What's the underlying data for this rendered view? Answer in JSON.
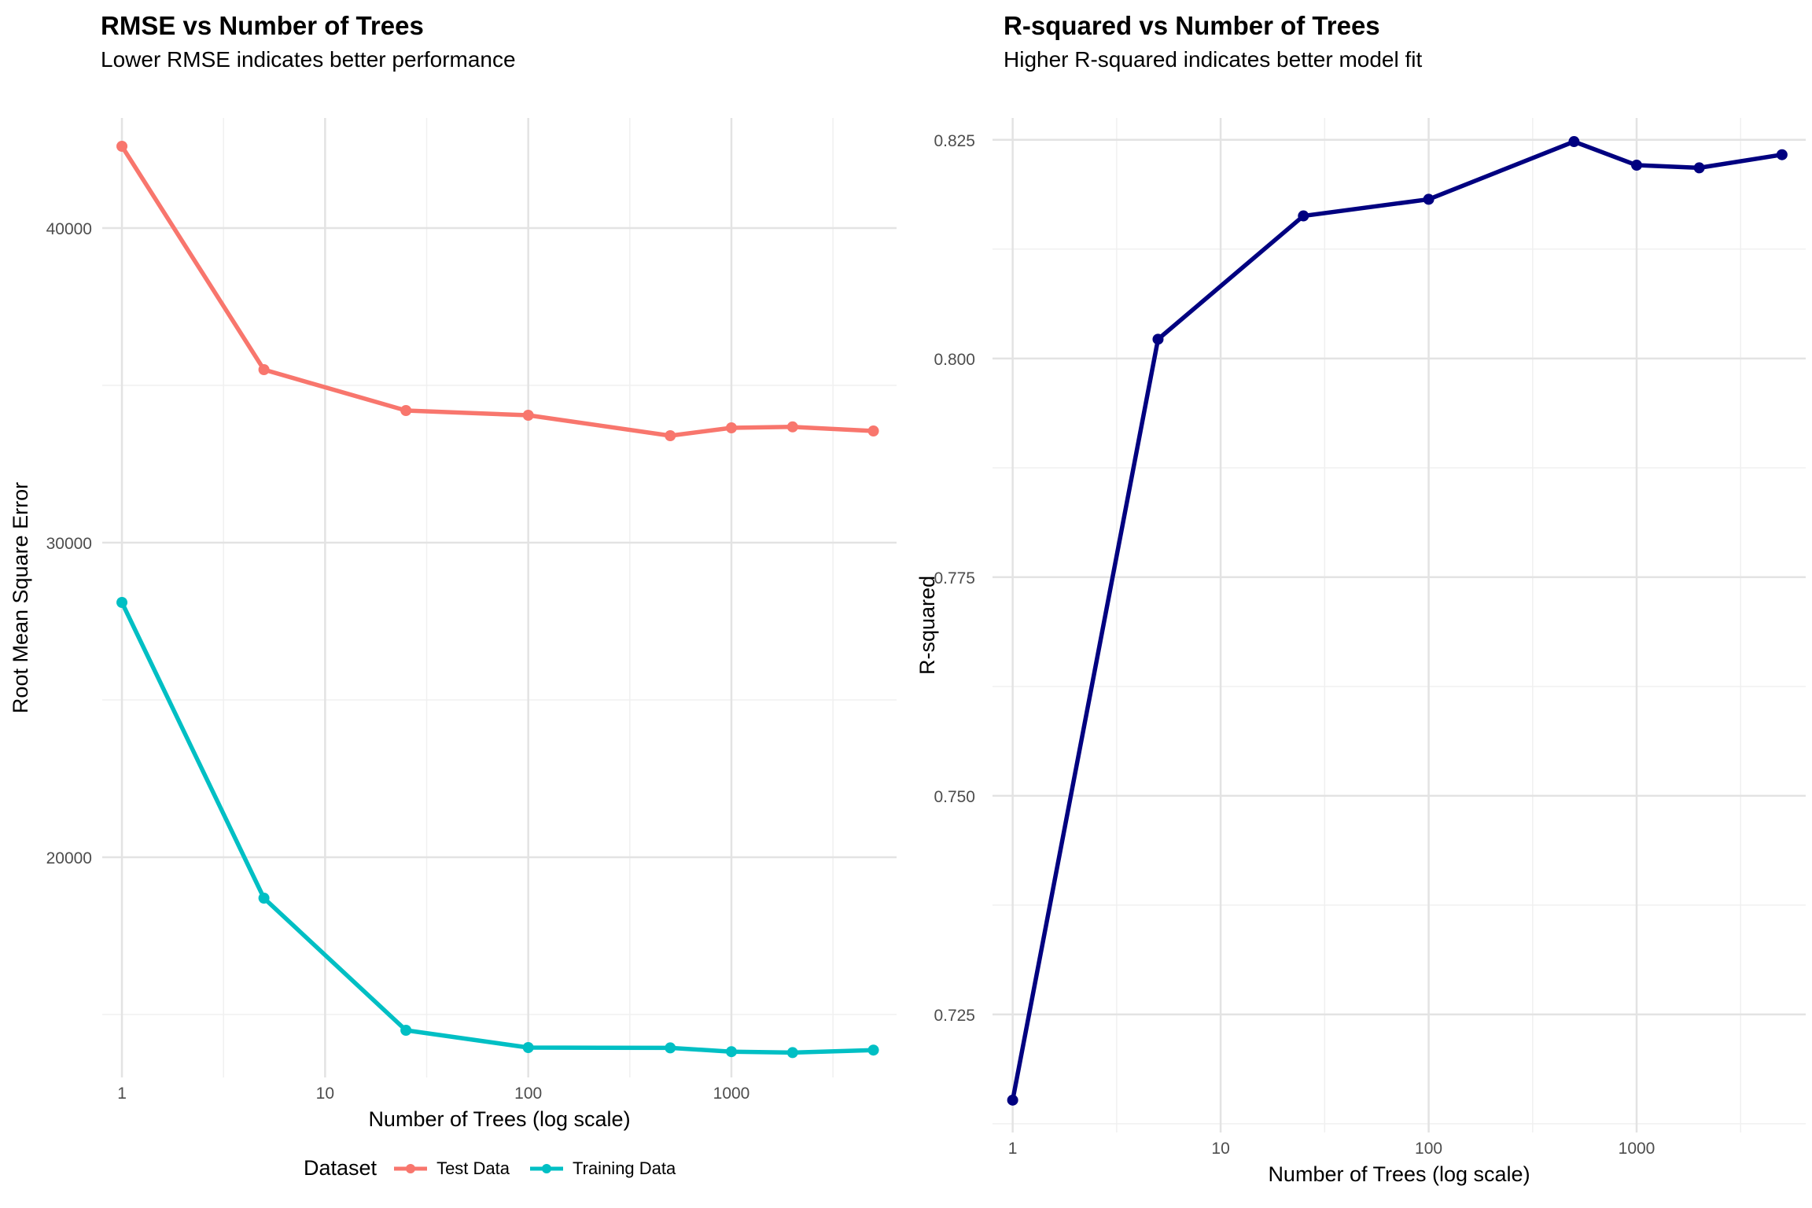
{
  "charts": [
    {
      "title": "RMSE vs Number of Trees",
      "subtitle": "Lower RMSE indicates better performance",
      "xlabel": "Number of Trees (log scale)",
      "ylabel": "Root Mean Square Error",
      "legend": {
        "title": "Dataset",
        "items": [
          {
            "label": "Test Data",
            "color": "#F8766D"
          },
          {
            "label": "Training Data",
            "color": "#00BFC4"
          }
        ]
      }
    },
    {
      "title": "R-squared vs Number of Trees",
      "subtitle": "Higher R-squared indicates better model fit",
      "xlabel": "Number of Trees (log scale)",
      "ylabel": "R-squared"
    }
  ],
  "chart_data": [
    {
      "type": "line",
      "title": "RMSE vs Number of Trees",
      "subtitle": "Lower RMSE indicates better performance",
      "xlabel": "Number of Trees (log scale)",
      "ylabel": "Root Mean Square Error",
      "x_scale": "log10",
      "x": [
        1,
        5,
        25,
        100,
        500,
        1000,
        2000,
        5000
      ],
      "xlim": [
        0.8,
        6500
      ],
      "x_ticks": [
        1,
        10,
        100,
        1000
      ],
      "x_tick_labels": [
        "1",
        "10",
        "100",
        "1000"
      ],
      "ylim": [
        13000,
        43500
      ],
      "y_ticks": [
        20000,
        30000,
        40000
      ],
      "y_tick_labels": [
        "20000",
        "30000",
        "40000"
      ],
      "y_minor_ticks": [
        15000,
        25000,
        35000
      ],
      "grid": true,
      "legend_position": "bottom",
      "series": [
        {
          "name": "Test Data",
          "color": "#F8766D",
          "values": [
            42600,
            35500,
            34200,
            34050,
            33400,
            33650,
            33680,
            33550
          ]
        },
        {
          "name": "Training Data",
          "color": "#00BFC4",
          "values": [
            28100,
            18700,
            14500,
            13950,
            13940,
            13820,
            13790,
            13870
          ]
        }
      ]
    },
    {
      "type": "line",
      "title": "R-squared vs Number of Trees",
      "subtitle": "Higher R-squared indicates better model fit",
      "xlabel": "Number of Trees (log scale)",
      "ylabel": "R-squared",
      "x_scale": "log10",
      "x": [
        1,
        5,
        25,
        100,
        500,
        1000,
        2000,
        5000
      ],
      "xlim": [
        0.8,
        6500
      ],
      "x_ticks": [
        1,
        10,
        100,
        1000
      ],
      "x_tick_labels": [
        "1",
        "10",
        "100",
        "1000"
      ],
      "ylim": [
        0.7115,
        0.8275
      ],
      "y_ticks": [
        0.725,
        0.75,
        0.775,
        0.8,
        0.825
      ],
      "y_tick_labels": [
        "0.725",
        "0.750",
        "0.775",
        "0.800",
        "0.825"
      ],
      "y_minor_ticks": [
        0.7125,
        0.7375,
        0.7625,
        0.7875,
        0.8125
      ],
      "grid": true,
      "series": [
        {
          "color": "#000080",
          "values": [
            0.7152,
            0.8022,
            0.8163,
            0.8182,
            0.8248,
            0.8221,
            0.8218,
            0.8233
          ]
        }
      ]
    }
  ]
}
